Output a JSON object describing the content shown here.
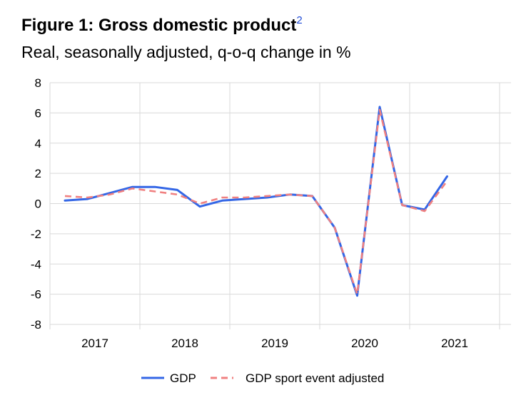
{
  "header": {
    "title": "Figure 1: Gross domestic product",
    "footnote": "2",
    "subtitle": "Real, seasonally adjusted, q-o-q change in %"
  },
  "chart_data": {
    "type": "line",
    "title": "Figure 1: Gross domestic product",
    "subtitle": "Real, seasonally adjusted, q-o-q change in %",
    "xlabel": "",
    "ylabel": "",
    "ylim": [
      -8,
      8
    ],
    "yticks": [
      "8",
      "6",
      "4",
      "2",
      "0",
      "-2",
      "-4",
      "-6",
      "-8"
    ],
    "xtick_labels": [
      "2017",
      "2018",
      "2019",
      "2020",
      "2021"
    ],
    "x": [
      "2017Q1",
      "2017Q2",
      "2017Q3",
      "2017Q4",
      "2018Q1",
      "2018Q2",
      "2018Q3",
      "2018Q4",
      "2019Q1",
      "2019Q2",
      "2019Q3",
      "2019Q4",
      "2020Q1",
      "2020Q2",
      "2020Q3",
      "2020Q4",
      "2021Q1",
      "2021Q2"
    ],
    "grid": true,
    "legend_position": "bottom-center",
    "series": [
      {
        "name": "GDP",
        "color": "#3366e6",
        "dash": "solid",
        "values": [
          0.2,
          0.3,
          0.7,
          1.1,
          1.1,
          0.9,
          -0.2,
          0.2,
          0.3,
          0.4,
          0.6,
          0.5,
          -1.6,
          -6.1,
          6.4,
          -0.1,
          -0.4,
          1.8
        ]
      },
      {
        "name": "GDP sport event adjusted",
        "color": "#f08080",
        "dash": "dashed",
        "values": [
          0.5,
          0.4,
          0.6,
          1.0,
          0.8,
          0.6,
          0.0,
          0.4,
          0.4,
          0.5,
          0.6,
          0.5,
          -1.6,
          -6.0,
          6.2,
          -0.1,
          -0.5,
          1.5
        ]
      }
    ]
  }
}
